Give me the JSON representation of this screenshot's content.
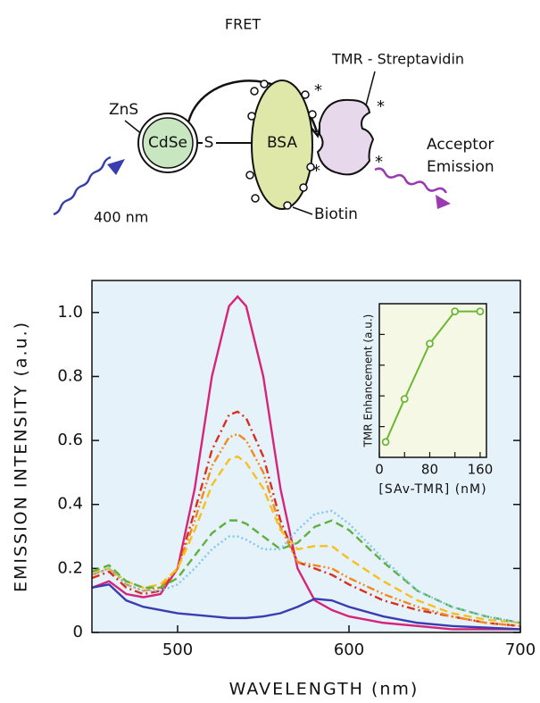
{
  "diagram": {
    "fret": "FRET",
    "zns": "ZnS",
    "cdse": "CdSe",
    "s": "S",
    "bsa": "BSA",
    "tmr": "TMR - Streptavidin",
    "acceptor": "Acceptor",
    "emission": "Emission",
    "excitation": "400 nm",
    "biotin": "Biotin"
  },
  "chart_data": [
    {
      "type": "line",
      "xlabel": "WAVELENGTH (nm)",
      "ylabel": "EMISSION INTENSITY (a.u.)",
      "x": [
        450,
        460,
        470,
        480,
        490,
        500,
        510,
        520,
        530,
        535,
        540,
        550,
        560,
        570,
        580,
        590,
        600,
        620,
        640,
        660,
        680,
        700
      ],
      "series": [
        {
          "color": "#d6247a",
          "linestyle": "solid",
          "values": [
            0.14,
            0.16,
            0.12,
            0.11,
            0.12,
            0.2,
            0.45,
            0.8,
            1.02,
            1.05,
            1.02,
            0.8,
            0.45,
            0.2,
            0.1,
            0.07,
            0.05,
            0.03,
            0.02,
            0.01,
            0.01,
            0.01
          ]
        },
        {
          "color": "#3a3db0",
          "linestyle": "solid",
          "values": [
            0.14,
            0.15,
            0.1,
            0.08,
            0.07,
            0.06,
            0.055,
            0.05,
            0.045,
            0.045,
            0.045,
            0.05,
            0.06,
            0.08,
            0.105,
            0.1,
            0.08,
            0.05,
            0.03,
            0.02,
            0.015,
            0.01
          ]
        },
        {
          "color": "#d83020",
          "linestyle": "dashdot",
          "values": [
            0.17,
            0.19,
            0.14,
            0.12,
            0.13,
            0.2,
            0.38,
            0.57,
            0.68,
            0.69,
            0.67,
            0.55,
            0.35,
            0.22,
            0.2,
            0.18,
            0.15,
            0.1,
            0.07,
            0.05,
            0.03,
            0.02
          ]
        },
        {
          "color": "#f08a1a",
          "linestyle": "dashdotdot",
          "values": [
            0.18,
            0.2,
            0.15,
            0.13,
            0.14,
            0.2,
            0.35,
            0.52,
            0.61,
            0.62,
            0.6,
            0.5,
            0.33,
            0.22,
            0.21,
            0.2,
            0.17,
            0.12,
            0.08,
            0.05,
            0.03,
            0.02
          ]
        },
        {
          "color": "#f5c020",
          "linestyle": "dashed",
          "values": [
            0.19,
            0.2,
            0.16,
            0.14,
            0.15,
            0.2,
            0.32,
            0.46,
            0.54,
            0.55,
            0.53,
            0.45,
            0.32,
            0.26,
            0.27,
            0.27,
            0.23,
            0.16,
            0.1,
            0.06,
            0.04,
            0.03
          ]
        },
        {
          "color": "#60b040",
          "linestyle": "dashed",
          "values": [
            0.19,
            0.21,
            0.16,
            0.14,
            0.14,
            0.17,
            0.24,
            0.31,
            0.35,
            0.35,
            0.34,
            0.3,
            0.26,
            0.28,
            0.33,
            0.35,
            0.32,
            0.22,
            0.13,
            0.08,
            0.05,
            0.03
          ]
        },
        {
          "color": "#80c8e8",
          "linestyle": "dotted",
          "values": [
            0.18,
            0.2,
            0.15,
            0.13,
            0.13,
            0.15,
            0.2,
            0.26,
            0.3,
            0.3,
            0.29,
            0.26,
            0.26,
            0.32,
            0.37,
            0.38,
            0.34,
            0.23,
            0.13,
            0.08,
            0.05,
            0.03
          ]
        }
      ],
      "xlim": [
        450,
        700
      ],
      "xticks": [
        500,
        600,
        700
      ],
      "ylim": [
        0,
        1.1
      ],
      "yticks": [
        0,
        0.2,
        0.4,
        0.6,
        0.8,
        {
          "value": 1,
          "label": "1.0"
        }
      ]
    },
    {
      "type": "scatter-line",
      "xlabel": "[SAv-TMR] (nM)",
      "ylabel": "TMR Enhancement (a.u.)",
      "x": [
        10,
        40,
        80,
        120,
        160
      ],
      "values": [
        0.1,
        0.38,
        0.74,
        0.95,
        0.95
      ],
      "color": "#6ab830",
      "xlim": [
        0,
        170
      ],
      "xticks": [
        0,
        80,
        160
      ],
      "ylim": [
        0,
        1
      ]
    }
  ]
}
